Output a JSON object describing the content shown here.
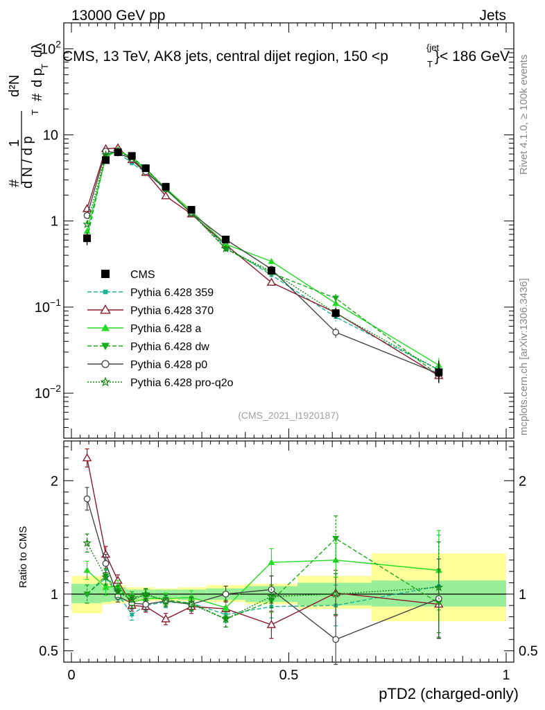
{
  "header": {
    "energy_label": "13000 GeV pp",
    "category_label": "Jets"
  },
  "side_labels": {
    "rivet": "Rivet 4.1.0, ≥ 100k events",
    "mcplots": "mcplots.cern.ch [arXiv:1306.3436]"
  },
  "chart_data": {
    "type": "line",
    "title": "CMS, 13 TeV, AK8 jets, central dijet region, 150 <p",
    "title_sup": "{jet",
    "title_sub": "T",
    "title_end": "}< 186 GeV",
    "watermark": "(CMS_2021_I1920187)",
    "ylabel_parts": [
      "#",
      "1",
      "d N / d p",
      "T",
      "#",
      "d p",
      "T",
      "dλ",
      "d²N"
    ],
    "ratio_ylabel": "Ratio to CMS",
    "xlabel": "pTD2 (charged-only)",
    "xlim": [
      0,
      1
    ],
    "ylim": [
      0.003,
      200
    ],
    "ratio_ylim": [
      0.4,
      2.35
    ],
    "x_ticks": [
      {
        "value": 0,
        "label": "0"
      },
      {
        "value": 0.5,
        "label": "0.5"
      },
      {
        "value": 1,
        "label": "1"
      }
    ],
    "y_ticks": [
      {
        "value": 0.01,
        "base": "10",
        "exp": "−2"
      },
      {
        "value": 0.1,
        "base": "10",
        "exp": "−1"
      },
      {
        "value": 1,
        "base": "1",
        "exp": ""
      },
      {
        "value": 10,
        "base": "10",
        "exp": ""
      },
      {
        "value": 100,
        "base": "10",
        "exp": "2"
      }
    ],
    "ratio_ticks": [
      {
        "value": 0.5,
        "label": "0.5"
      },
      {
        "value": 1,
        "label": "1"
      },
      {
        "value": 2,
        "label": "2"
      }
    ],
    "x": [
      0.036,
      0.079,
      0.107,
      0.139,
      0.171,
      0.217,
      0.276,
      0.355,
      0.46,
      0.608,
      0.845
    ],
    "data": {
      "name": "CMS",
      "values": [
        0.63,
        5.1,
        6.3,
        5.7,
        4.1,
        2.5,
        1.35,
        0.61,
        0.265,
        0.085,
        0.0175
      ],
      "band_bins": [
        {
          "lo": 0,
          "hi": 0.07,
          "inner": [
            0.92,
            1.09
          ],
          "outer": [
            0.83,
            1.16
          ]
        },
        {
          "lo": 0.07,
          "hi": 0.09,
          "inner": [
            0.93,
            1.07
          ],
          "outer": [
            0.91,
            1.1
          ]
        },
        {
          "lo": 0.09,
          "hi": 0.125,
          "inner": [
            0.94,
            1.06
          ],
          "outer": [
            0.92,
            1.08
          ]
        },
        {
          "lo": 0.125,
          "hi": 0.155,
          "inner": [
            0.95,
            1.04
          ],
          "outer": [
            0.93,
            1.06
          ]
        },
        {
          "lo": 0.155,
          "hi": 0.19,
          "inner": [
            0.96,
            1.04
          ],
          "outer": [
            0.94,
            1.06
          ]
        },
        {
          "lo": 0.19,
          "hi": 0.245,
          "inner": [
            0.96,
            1.04
          ],
          "outer": [
            0.94,
            1.05
          ]
        },
        {
          "lo": 0.245,
          "hi": 0.31,
          "inner": [
            0.95,
            1.04
          ],
          "outer": [
            0.94,
            1.06
          ]
        },
        {
          "lo": 0.31,
          "hi": 0.4,
          "inner": [
            0.95,
            1.05
          ],
          "outer": [
            0.93,
            1.08
          ]
        },
        {
          "lo": 0.4,
          "hi": 0.52,
          "inner": [
            0.93,
            1.07
          ],
          "outer": [
            0.91,
            1.09
          ]
        },
        {
          "lo": 0.52,
          "hi": 0.69,
          "inner": [
            0.9,
            1.1
          ],
          "outer": [
            0.87,
            1.16
          ]
        },
        {
          "lo": 0.69,
          "hi": 1.0,
          "inner": [
            0.89,
            1.12
          ],
          "outer": [
            0.76,
            1.36
          ]
        }
      ]
    },
    "series": [
      {
        "name": "Pythia 6.428 359",
        "color": "#1ab394",
        "dash": "6,3",
        "marker": "square",
        "ratio": [
          1.0,
          1.14,
          1.0,
          0.82,
          0.9,
          0.93,
          0.92,
          0.82,
          0.89,
          0.9,
          1.07
        ],
        "rerr": [
          0.08,
          0.07,
          0.05,
          0.05,
          0.05,
          0.05,
          0.06,
          0.07,
          0.1,
          0.18,
          0.45
        ]
      },
      {
        "name": "Pythia 6.428 370",
        "color": "#8b1a2b",
        "dash": "",
        "marker": "triangle-open",
        "ratio": [
          2.2,
          1.35,
          1.12,
          0.9,
          0.89,
          0.78,
          0.89,
          0.87,
          0.73,
          1.01,
          0.91
        ],
        "rerr": [
          0.08,
          0.07,
          0.05,
          0.05,
          0.05,
          0.05,
          0.06,
          0.07,
          0.12,
          0.2,
          0.3
        ]
      },
      {
        "name": "Pythia 6.428 a",
        "color": "#22dd22",
        "dash": "",
        "marker": "triangle",
        "ratio": [
          1.21,
          1.06,
          1.07,
          0.93,
          0.96,
          0.96,
          0.97,
          0.88,
          1.28,
          1.3,
          1.21
        ],
        "rerr": [
          0.08,
          0.07,
          0.05,
          0.05,
          0.05,
          0.05,
          0.06,
          0.07,
          0.12,
          0.15,
          0.35
        ]
      },
      {
        "name": "Pythia 6.428 dw",
        "color": "#1aab1a",
        "dash": "6,3",
        "marker": "triangle-down",
        "ratio": [
          1.0,
          1.16,
          1.03,
          0.97,
          0.99,
          0.95,
          0.92,
          0.78,
          0.94,
          1.49,
          0.92
        ],
        "rerr": [
          0.08,
          0.07,
          0.05,
          0.05,
          0.05,
          0.05,
          0.06,
          0.07,
          0.1,
          0.2,
          0.3
        ]
      },
      {
        "name": "Pythia 6.428 p0",
        "color": "#444444",
        "dash": "",
        "marker": "circle-open",
        "ratio": [
          1.84,
          1.27,
          0.98,
          0.92,
          0.91,
          0.94,
          0.91,
          1.0,
          1.04,
          0.6,
          0.96
        ],
        "rerr": [
          0.1,
          0.08,
          0.05,
          0.05,
          0.05,
          0.05,
          0.06,
          0.07,
          0.12,
          0.22,
          0.35
        ]
      },
      {
        "name": "Pythia 6.428 pro-q2o",
        "color": "#118811",
        "dash": "2,2",
        "marker": "star",
        "ratio": [
          1.45,
          1.15,
          1.02,
          0.95,
          1.0,
          0.94,
          0.91,
          0.78,
          0.98,
          1.0,
          1.06
        ],
        "rerr": [
          0.08,
          0.07,
          0.05,
          0.05,
          0.05,
          0.05,
          0.06,
          0.07,
          0.1,
          0.18,
          0.4
        ]
      }
    ]
  }
}
